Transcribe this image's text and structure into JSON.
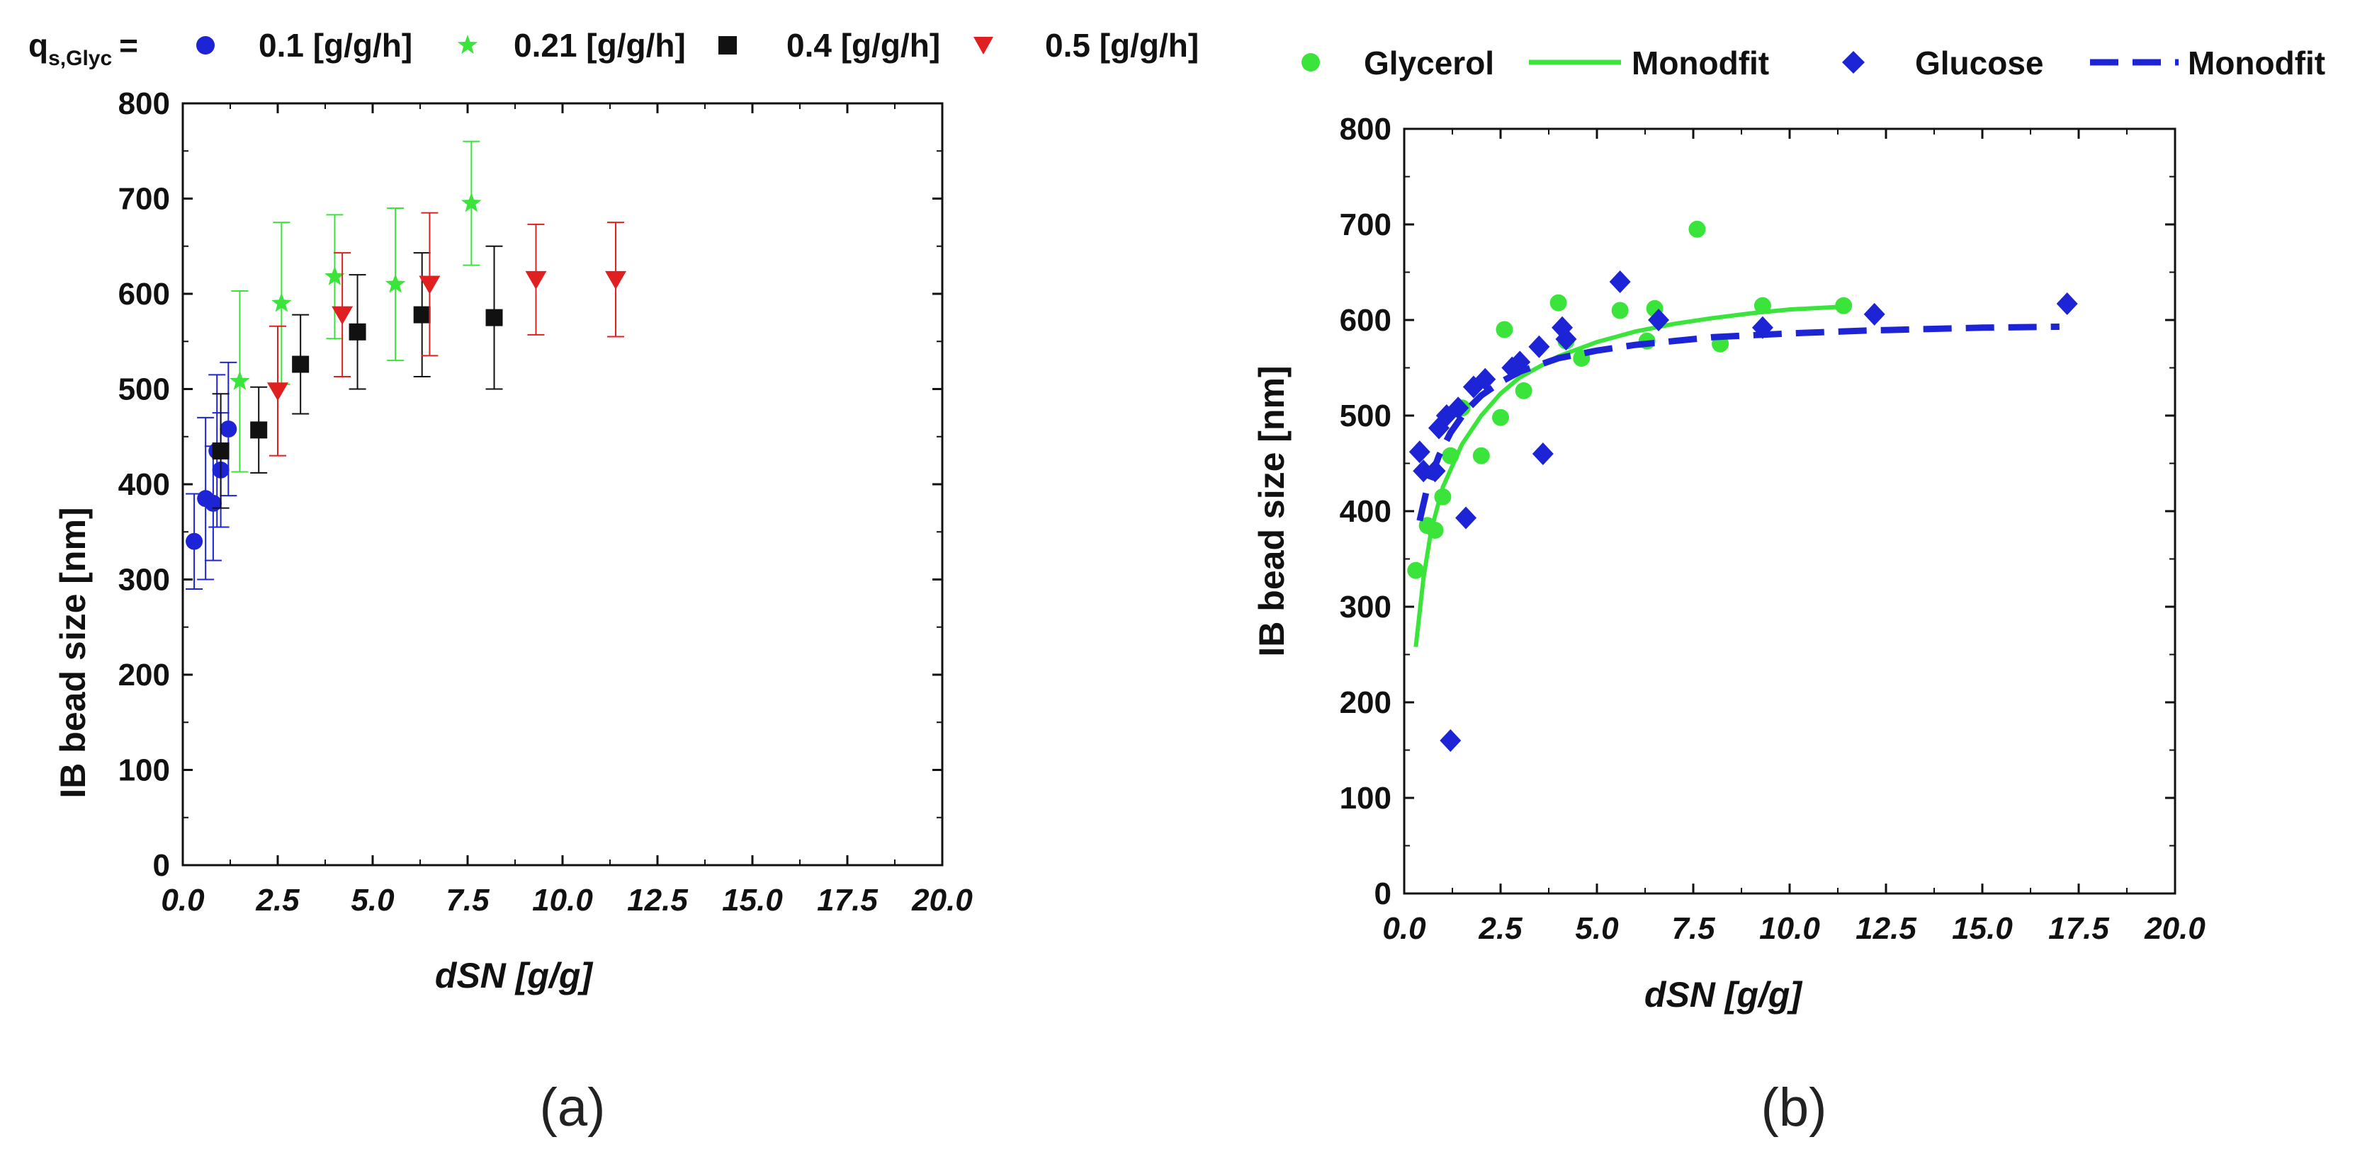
{
  "colors": {
    "blue": "#1d24d6",
    "green": "#3be43b",
    "black": "#111111",
    "red": "#e02020",
    "axis": "#111111"
  },
  "chart_data": [
    {
      "type": "scatter",
      "panel_label": "(a)",
      "xlabel": "dSN [g/g]",
      "ylabel": "IB bead size [nm]",
      "xlim": [
        0,
        20
      ],
      "ylim": [
        0,
        800
      ],
      "xticks": [
        "0.0",
        "2.5",
        "5.0",
        "7.5",
        "10.0",
        "12.5",
        "15.0",
        "17.5",
        "20.0"
      ],
      "yticks": [
        "0",
        "100",
        "200",
        "300",
        "400",
        "500",
        "600",
        "700",
        "800"
      ],
      "legend_title": "q",
      "legend_title_sub": "s,Glyc",
      "legend_title_eq": "=",
      "series": [
        {
          "name": "0.1 [g/g/h]",
          "marker": "circle",
          "color": "#1d24d6",
          "points": [
            [
              0.3,
              340,
              50
            ],
            [
              0.6,
              385,
              85
            ],
            [
              0.8,
              380,
              60
            ],
            [
              0.9,
              435,
              80
            ],
            [
              1.0,
              415,
              60
            ],
            [
              1.2,
              458,
              70
            ]
          ]
        },
        {
          "name": "0.21 [g/g/h]",
          "marker": "star",
          "color": "#3be43b",
          "points": [
            [
              1.5,
              508,
              95
            ],
            [
              2.6,
              590,
              85
            ],
            [
              4.0,
              618,
              65
            ],
            [
              5.6,
              610,
              80
            ],
            [
              7.6,
              695,
              65
            ]
          ]
        },
        {
          "name": "0.4 [g/g/h]",
          "marker": "square",
          "color": "#111111",
          "points": [
            [
              1.0,
              435,
              60
            ],
            [
              2.0,
              457,
              45
            ],
            [
              3.1,
              526,
              52
            ],
            [
              4.6,
              560,
              60
            ],
            [
              6.3,
              578,
              65
            ],
            [
              8.2,
              575,
              75
            ]
          ]
        },
        {
          "name": "0.5 [g/g/h]",
          "marker": "triangle-down",
          "color": "#e02020",
          "points": [
            [
              2.5,
              498,
              68
            ],
            [
              4.2,
              578,
              65
            ],
            [
              6.5,
              610,
              75
            ],
            [
              9.3,
              615,
              58
            ],
            [
              11.4,
              615,
              60
            ]
          ]
        }
      ]
    },
    {
      "type": "scatter",
      "panel_label": "(b)",
      "xlabel": "dSN [g/g]",
      "ylabel": "IB bead size [nm]",
      "xlim": [
        0,
        20
      ],
      "ylim": [
        0,
        800
      ],
      "xticks": [
        "0.0",
        "2.5",
        "5.0",
        "7.5",
        "10.0",
        "12.5",
        "15.0",
        "17.5",
        "20.0"
      ],
      "yticks": [
        "0",
        "100",
        "200",
        "300",
        "400",
        "500",
        "600",
        "700",
        "800"
      ],
      "series": [
        {
          "name": "Glycerol",
          "marker": "circle",
          "color": "#3be43b",
          "points": [
            [
              0.3,
              338
            ],
            [
              0.6,
              385
            ],
            [
              0.8,
              380
            ],
            [
              1.0,
              415
            ],
            [
              1.2,
              458
            ],
            [
              1.5,
              508
            ],
            [
              2.0,
              458
            ],
            [
              2.5,
              498
            ],
            [
              2.6,
              590
            ],
            [
              3.1,
              526
            ],
            [
              4.0,
              618
            ],
            [
              4.2,
              578
            ],
            [
              4.6,
              560
            ],
            [
              5.6,
              610
            ],
            [
              6.3,
              578
            ],
            [
              6.5,
              612
            ],
            [
              7.6,
              695
            ],
            [
              8.2,
              575
            ],
            [
              9.3,
              615
            ],
            [
              11.4,
              615
            ]
          ]
        },
        {
          "name": "Monodfit",
          "style": "solid-line",
          "color": "#3be43b",
          "points": [
            [
              0.3,
              258
            ],
            [
              0.5,
              330
            ],
            [
              0.7,
              380
            ],
            [
              1.0,
              425
            ],
            [
              1.5,
              470
            ],
            [
              2.0,
              500
            ],
            [
              2.5,
              523
            ],
            [
              3.0,
              540
            ],
            [
              4.0,
              562
            ],
            [
              5.0,
              577
            ],
            [
              6.0,
              588
            ],
            [
              7.0,
              596
            ],
            [
              8.0,
              602
            ],
            [
              9.0,
              607
            ],
            [
              10.0,
              611
            ],
            [
              11.4,
              614
            ]
          ]
        },
        {
          "name": "Glucose",
          "marker": "diamond",
          "color": "#1d24d6",
          "points": [
            [
              0.4,
              462
            ],
            [
              0.5,
              442
            ],
            [
              0.8,
              442
            ],
            [
              0.9,
              487
            ],
            [
              1.1,
              500
            ],
            [
              1.2,
              160
            ],
            [
              1.4,
              508
            ],
            [
              1.6,
              393
            ],
            [
              1.8,
              530
            ],
            [
              2.1,
              538
            ],
            [
              2.8,
              550
            ],
            [
              3.0,
              556
            ],
            [
              3.5,
              572
            ],
            [
              3.6,
              460
            ],
            [
              4.1,
              592
            ],
            [
              4.2,
              580
            ],
            [
              5.6,
              640
            ],
            [
              6.6,
              600
            ],
            [
              9.3,
              592
            ],
            [
              12.2,
              606
            ],
            [
              17.2,
              617
            ]
          ]
        },
        {
          "name": "Monodfit",
          "style": "dashed-line",
          "color": "#1d24d6",
          "points": [
            [
              0.4,
              390
            ],
            [
              0.6,
              425
            ],
            [
              0.9,
              458
            ],
            [
              1.2,
              482
            ],
            [
              1.6,
              505
            ],
            [
              2.0,
              521
            ],
            [
              2.5,
              535
            ],
            [
              3.0,
              546
            ],
            [
              4.0,
              560
            ],
            [
              5.0,
              568
            ],
            [
              6.0,
              574
            ],
            [
              8.0,
              582
            ],
            [
              10.0,
              586
            ],
            [
              12.0,
              589
            ],
            [
              15.0,
              592
            ],
            [
              17.0,
              593
            ]
          ]
        }
      ]
    }
  ]
}
